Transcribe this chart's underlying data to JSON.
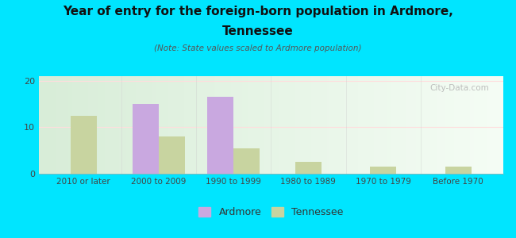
{
  "categories": [
    "2010 or later",
    "2000 to 2009",
    "1990 to 1999",
    "1980 to 1989",
    "1970 to 1979",
    "Before 1970"
  ],
  "ardmore_values": [
    0,
    15.0,
    16.5,
    0,
    0,
    0
  ],
  "tennessee_values": [
    12.5,
    8.0,
    5.5,
    2.5,
    1.5,
    1.5
  ],
  "ardmore_color": "#c9a8e0",
  "tennessee_color": "#c8d4a0",
  "title_line1": "Year of entry for the foreign-born population in Ardmore,",
  "title_line2": "Tennessee",
  "subtitle": "(Note: State values scaled to Ardmore population)",
  "ylabel_ticks": [
    0,
    10,
    20
  ],
  "ylim": [
    0,
    21
  ],
  "background_outer": "#00e5ff",
  "background_inner": "#e8f5e0",
  "watermark": "City-Data.com",
  "legend_ardmore": "Ardmore",
  "legend_tennessee": "Tennessee",
  "bar_width": 0.35,
  "title_fontsize": 11,
  "subtitle_fontsize": 7.5,
  "tick_fontsize": 8,
  "xtick_fontsize": 7.5,
  "legend_fontsize": 9
}
